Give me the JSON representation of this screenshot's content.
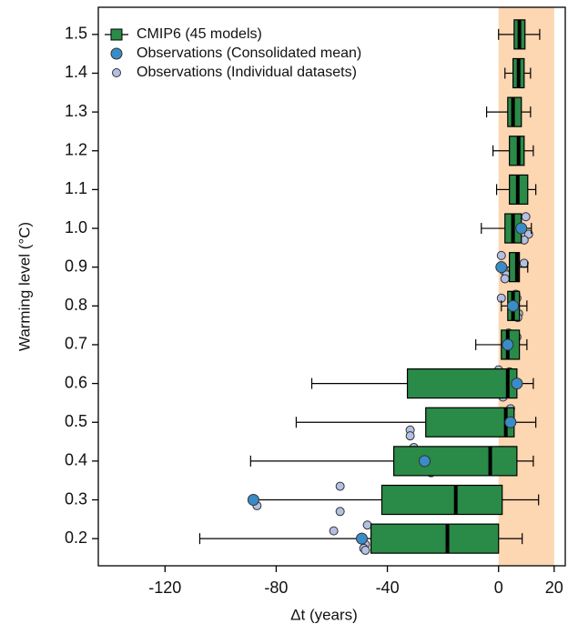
{
  "chart_data": {
    "type": "boxplot",
    "xlabel": "Δt (years)",
    "ylabel": "Warming level (°C)",
    "xlim": [
      -144,
      24
    ],
    "ylim": [
      0.13,
      1.57
    ],
    "xticks": [
      -120,
      -80,
      -40,
      0,
      20
    ],
    "yticks": [
      0.2,
      0.3,
      0.4,
      0.5,
      0.6,
      0.7,
      0.8,
      0.9,
      {
        "value": 1,
        "label": "1.0"
      },
      1.1,
      1.2,
      1.3,
      1.4,
      1.5
    ],
    "shaded_region": {
      "x": [
        0,
        20
      ],
      "color": "#fdd6b2"
    },
    "legend": "upper left",
    "series": [
      {
        "name": "CMIP6 (45 models)",
        "type": "box",
        "color": "#2a8a47",
        "y": [
          0.2,
          0.3,
          0.4,
          0.5,
          0.6,
          0.7,
          0.8,
          0.9,
          1.0,
          1.1,
          1.2,
          1.3,
          1.4,
          1.5
        ],
        "whislo": [
          -107.5,
          -88.2,
          -89.2,
          -72.8,
          -67.2,
          -8.2,
          1,
          1,
          -6.2,
          -0.7,
          -2,
          -4.3,
          2.3,
          0
        ],
        "q1": [
          -45.9,
          -42,
          -37.7,
          -26.2,
          -32.8,
          1,
          3.3,
          3.9,
          2.3,
          3.9,
          3.9,
          3.3,
          5.2,
          5.6
        ],
        "med": [
          -18.4,
          -15.4,
          -3,
          2.6,
          3.3,
          3.3,
          5.2,
          6.6,
          5.2,
          6.9,
          7.2,
          5.2,
          7.2,
          7.5
        ],
        "q3": [
          0,
          1.3,
          6.6,
          5.6,
          6.6,
          7.5,
          7.5,
          7.5,
          8.2,
          10.5,
          9.2,
          8.2,
          9.2,
          9.5
        ],
        "whishi": [
          8.5,
          14.4,
          12.5,
          13.4,
          12.5,
          10.2,
          10.2,
          10.5,
          11.8,
          13.4,
          12.5,
          11.5,
          11.5,
          14.8
        ]
      },
      {
        "name": "Observations (Consolidated mean)",
        "type": "scatter",
        "color": "#3a8cc8",
        "x": [
          -49.2,
          -88.2,
          -26.6,
          4.3,
          6.6,
          3.3,
          5.2,
          1,
          8.2
        ],
        "y": [
          0.2,
          0.3,
          0.4,
          0.5,
          0.6,
          0.7,
          0.8,
          0.9,
          1.0
        ]
      },
      {
        "name": "Observations (Individual datasets)",
        "type": "scatter",
        "color": "#b3bfe3",
        "x": [
          -47.2,
          -59.3,
          -47.9,
          -48.5,
          -47.9,
          -57,
          -27.5,
          -57,
          -86.9,
          -31.8,
          -31.8,
          -30.5,
          -29.5,
          -25.6,
          -24.3,
          4.3,
          2,
          3.3,
          2.3,
          0,
          3.9,
          4.6,
          2.3,
          1.6,
          3.6,
          6.6,
          5.2,
          4.6,
          1,
          6.2,
          6.6,
          7.2,
          6.9,
          1,
          9.2,
          2,
          2.9,
          2.3,
          9.8,
          10.8,
          9.2
        ],
        "y": [
          0.235,
          0.22,
          0.185,
          0.175,
          0.17,
          0.335,
          0.318,
          0.27,
          0.285,
          0.48,
          0.465,
          0.435,
          0.425,
          0.38,
          0.37,
          0.535,
          0.52,
          0.51,
          0.49,
          0.635,
          0.63,
          0.61,
          0.58,
          0.565,
          0.73,
          0.72,
          0.69,
          0.68,
          0.82,
          0.83,
          0.82,
          0.78,
          0.77,
          0.93,
          0.91,
          0.89,
          0.88,
          0.87,
          1.03,
          0.985,
          0.97
        ]
      }
    ]
  }
}
